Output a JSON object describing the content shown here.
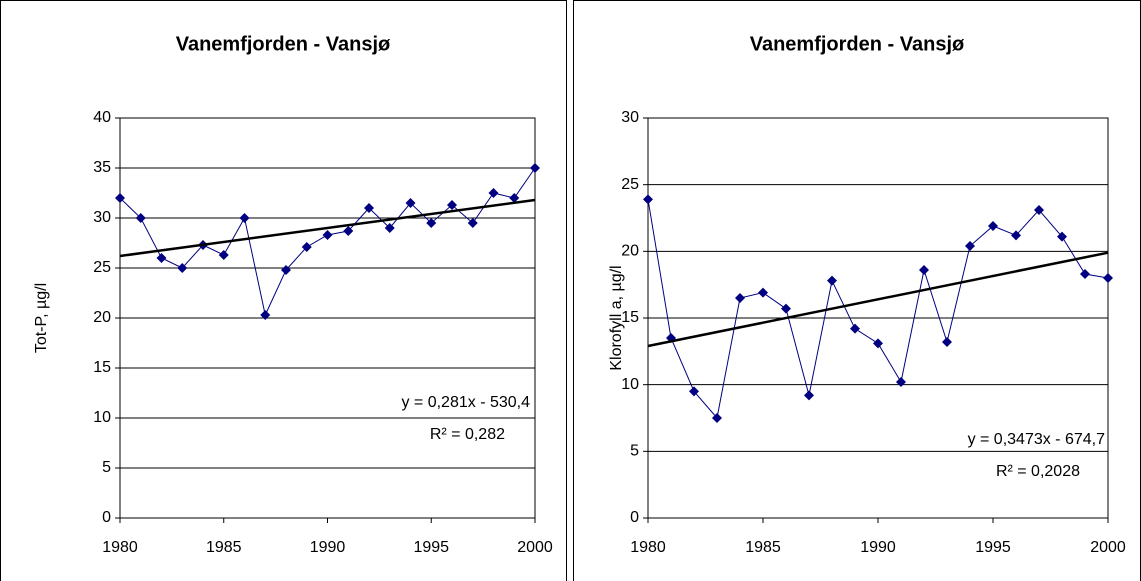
{
  "chart_data": [
    {
      "type": "line",
      "title": "Vanemfjorden - Vansjø",
      "y_label": "Tot-P, µg/l",
      "x": [
        1980,
        1981,
        1982,
        1983,
        1984,
        1985,
        1986,
        1987,
        1988,
        1989,
        1990,
        1991,
        1992,
        1993,
        1994,
        1995,
        1996,
        1997,
        1998,
        1999,
        2000
      ],
      "values": [
        32,
        30,
        26,
        25,
        27.3,
        26.3,
        30,
        20.3,
        24.8,
        27.1,
        28.3,
        28.7,
        31,
        29,
        31.5,
        29.5,
        31.3,
        29.5,
        32.5,
        32,
        35
      ],
      "color": "#000080",
      "trendline": {
        "x": [
          1980,
          2000
        ],
        "values": [
          26.2,
          31.8
        ],
        "color": "#000000"
      },
      "annotations": [
        "y = 0,281x - 530,4",
        "R² = 0,282"
      ],
      "xlim": [
        1980,
        2000
      ],
      "xticks": [
        1980,
        1985,
        1990,
        1995,
        2000
      ],
      "ylim": [
        0,
        40
      ],
      "yticks": [
        0,
        5,
        10,
        15,
        20,
        25,
        30,
        35,
        40
      ],
      "grid": true
    },
    {
      "type": "line",
      "title": "Vanemfjorden - Vansjø",
      "y_label": "Klorofyll a, µg/l",
      "x": [
        1980,
        1981,
        1982,
        1983,
        1984,
        1985,
        1986,
        1987,
        1988,
        1989,
        1990,
        1991,
        1992,
        1993,
        1994,
        1995,
        1996,
        1997,
        1998,
        1999,
        2000
      ],
      "values": [
        23.9,
        13.5,
        9.5,
        7.5,
        16.5,
        16.9,
        15.7,
        9.2,
        17.8,
        14.2,
        13.1,
        10.2,
        18.6,
        13.2,
        20.4,
        21.9,
        21.2,
        23.1,
        21.1,
        18.3,
        18
      ],
      "color": "#000080",
      "trendline": {
        "x": [
          1980,
          2000
        ],
        "values": [
          12.9,
          19.9
        ],
        "color": "#000000"
      },
      "annotations": [
        "y = 0,3473x - 674,7",
        "R² = 0,2028"
      ],
      "xlim": [
        1980,
        2000
      ],
      "xticks": [
        1980,
        1985,
        1990,
        1995,
        2000
      ],
      "ylim": [
        0,
        30
      ],
      "yticks": [
        0,
        5,
        10,
        15,
        20,
        25,
        30
      ],
      "grid": true
    }
  ]
}
